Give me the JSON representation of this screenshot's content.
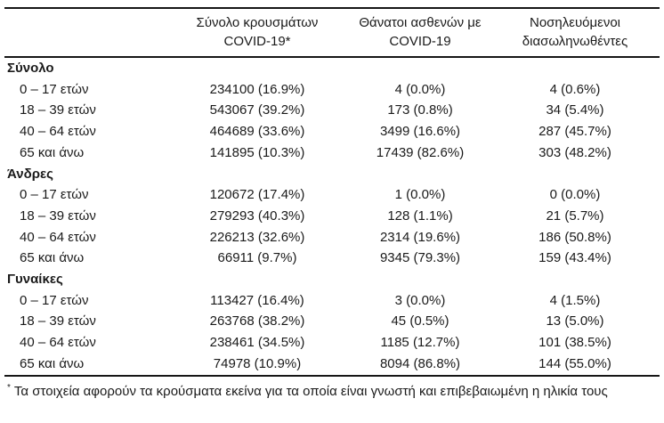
{
  "table": {
    "header": {
      "empty": "",
      "cases_line1": "Σύνολο κρουσμάτων",
      "cases_line2": "COVID-19*",
      "deaths_line1": "Θάνατοι ασθενών με",
      "deaths_line2": "COVID-19",
      "intubated_line1": "Νοσηλευόμενοι",
      "intubated_line2": "διασωληνωθέντες"
    },
    "sections": [
      {
        "label": "Σύνολο",
        "rows": [
          {
            "age": "0 – 17 ετών",
            "cases": "234100 (16.9%)",
            "deaths": "4 (0.0%)",
            "intubated": "4 (0.6%)"
          },
          {
            "age": "18 – 39 ετών",
            "cases": "543067 (39.2%)",
            "deaths": "173 (0.8%)",
            "intubated": "34 (5.4%)"
          },
          {
            "age": "40 – 64 ετών",
            "cases": "464689 (33.6%)",
            "deaths": "3499 (16.6%)",
            "intubated": "287 (45.7%)"
          },
          {
            "age": "65 και άνω",
            "cases": "141895 (10.3%)",
            "deaths": "17439 (82.6%)",
            "intubated": "303 (48.2%)"
          }
        ]
      },
      {
        "label": "Άνδρες",
        "rows": [
          {
            "age": "0 – 17 ετών",
            "cases": "120672 (17.4%)",
            "deaths": "1 (0.0%)",
            "intubated": "0 (0.0%)"
          },
          {
            "age": "18 – 39 ετών",
            "cases": "279293 (40.3%)",
            "deaths": "128 (1.1%)",
            "intubated": "21 (5.7%)"
          },
          {
            "age": "40 – 64 ετών",
            "cases": "226213 (32.6%)",
            "deaths": "2314 (19.6%)",
            "intubated": "186 (50.8%)"
          },
          {
            "age": "65 και άνω",
            "cases": "66911 (9.7%)",
            "deaths": "9345 (79.3%)",
            "intubated": "159 (43.4%)"
          }
        ]
      },
      {
        "label": "Γυναίκες",
        "rows": [
          {
            "age": "0 – 17 ετών",
            "cases": "113427 (16.4%)",
            "deaths": "3 (0.0%)",
            "intubated": "4 (1.5%)"
          },
          {
            "age": "18 – 39 ετών",
            "cases": "263768 (38.2%)",
            "deaths": "45 (0.5%)",
            "intubated": "13 (5.0%)"
          },
          {
            "age": "40 – 64 ετών",
            "cases": "238461 (34.5%)",
            "deaths": "1185 (12.7%)",
            "intubated": "101 (38.5%)"
          },
          {
            "age": "65 και άνω",
            "cases": "74978 (10.9%)",
            "deaths": "8094 (86.8%)",
            "intubated": "144 (55.0%)"
          }
        ]
      }
    ],
    "footnote_marker": "*",
    "footnote": "Τα στοιχεία αφορούν τα κρούσματα εκείνα για τα οποία είναι γνωστή και επιβεβαιωμένη η ηλικία τους"
  }
}
